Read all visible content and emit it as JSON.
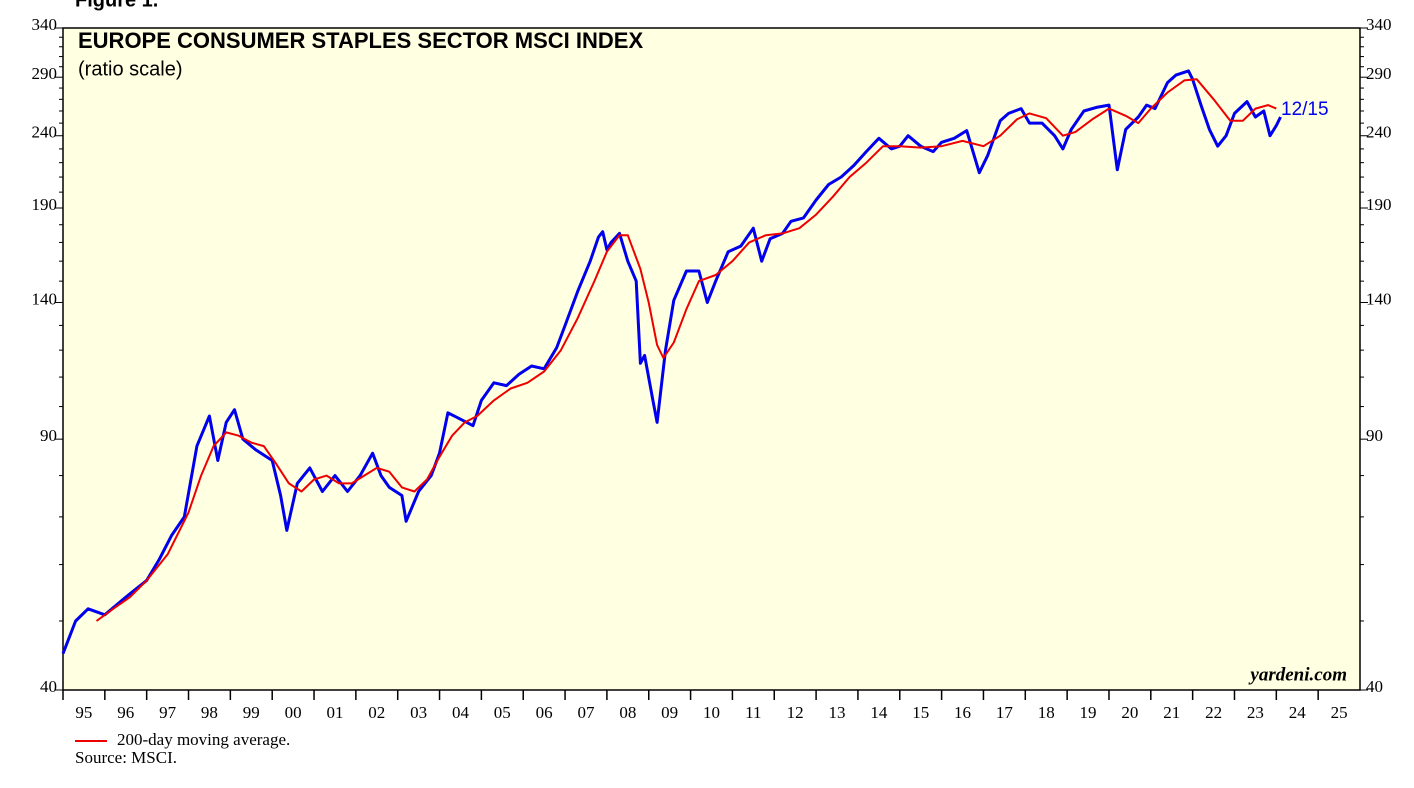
{
  "chart_data": {
    "type": "line",
    "figure_label": "Figure 1.",
    "title": "EUROPE CONSUMER STAPLES SECTOR MSCI INDEX",
    "subtitle": "(ratio scale)",
    "watermark": "yardeni.com",
    "end_label": "12/15",
    "source": "Source: MSCI.",
    "yscale": "log",
    "ylim": [
      40,
      340
    ],
    "yticks": [
      40,
      90,
      140,
      190,
      240,
      290,
      340
    ],
    "yminorticks": [
      50,
      60,
      70,
      80,
      100,
      110,
      120,
      130,
      150,
      160,
      170,
      180,
      200,
      210,
      220,
      230,
      250,
      260,
      270,
      280,
      300,
      310,
      320,
      330
    ],
    "xlim": [
      1995,
      2026
    ],
    "xticks": [
      {
        "value": 1995,
        "label": "95"
      },
      {
        "value": 1996,
        "label": "96"
      },
      {
        "value": 1997,
        "label": "97"
      },
      {
        "value": 1998,
        "label": "98"
      },
      {
        "value": 1999,
        "label": "99"
      },
      {
        "value": 2000,
        "label": "00"
      },
      {
        "value": 2001,
        "label": "01"
      },
      {
        "value": 2002,
        "label": "02"
      },
      {
        "value": 2003,
        "label": "03"
      },
      {
        "value": 2004,
        "label": "04"
      },
      {
        "value": 2005,
        "label": "05"
      },
      {
        "value": 2006,
        "label": "06"
      },
      {
        "value": 2007,
        "label": "07"
      },
      {
        "value": 2008,
        "label": "08"
      },
      {
        "value": 2009,
        "label": "09"
      },
      {
        "value": 2010,
        "label": "10"
      },
      {
        "value": 2011,
        "label": "11"
      },
      {
        "value": 2012,
        "label": "12"
      },
      {
        "value": 2013,
        "label": "13"
      },
      {
        "value": 2014,
        "label": "14"
      },
      {
        "value": 2015,
        "label": "15"
      },
      {
        "value": 2016,
        "label": "16"
      },
      {
        "value": 2017,
        "label": "17"
      },
      {
        "value": 2018,
        "label": "18"
      },
      {
        "value": 2019,
        "label": "19"
      },
      {
        "value": 2020,
        "label": "20"
      },
      {
        "value": 2021,
        "label": "21"
      },
      {
        "value": 2022,
        "label": "22"
      },
      {
        "value": 2023,
        "label": "23"
      },
      {
        "value": 2024,
        "label": "24"
      },
      {
        "value": 2025,
        "label": "25"
      }
    ],
    "series": [
      {
        "color": "#0000ee",
        "x": [
          1995.0,
          1995.3,
          1995.6,
          1996.0,
          1996.5,
          1997.0,
          1997.3,
          1997.6,
          1997.9,
          1998.2,
          1998.5,
          1998.7,
          1998.9,
          1999.1,
          1999.3,
          1999.6,
          2000.0,
          2000.2,
          2000.35,
          2000.6,
          2000.9,
          2001.2,
          2001.5,
          2001.8,
          2002.1,
          2002.4,
          2002.6,
          2002.8,
          2003.1,
          2003.2,
          2003.5,
          2003.8,
          2004.0,
          2004.2,
          2004.5,
          2004.8,
          2005.0,
          2005.3,
          2005.6,
          2005.9,
          2006.2,
          2006.5,
          2006.8,
          2007.0,
          2007.3,
          2007.6,
          2007.8,
          2007.9,
          2008.0,
          2008.1,
          2008.3,
          2008.5,
          2008.7,
          2008.8,
          2008.9,
          2009.1,
          2009.2,
          2009.4,
          2009.6,
          2009.9,
          2010.2,
          2010.4,
          2010.6,
          2010.9,
          2011.2,
          2011.5,
          2011.7,
          2011.9,
          2012.2,
          2012.4,
          2012.7,
          2013.0,
          2013.3,
          2013.6,
          2013.9,
          2014.2,
          2014.5,
          2014.8,
          2015.0,
          2015.2,
          2015.5,
          2015.8,
          2016.0,
          2016.3,
          2016.6,
          2016.9,
          2017.1,
          2017.4,
          2017.6,
          2017.9,
          2018.1,
          2018.4,
          2018.7,
          2018.9,
          2019.1,
          2019.4,
          2019.7,
          2020.0,
          2020.2,
          2020.4,
          2020.7,
          2020.9,
          2021.1,
          2021.4,
          2021.6,
          2021.9,
          2022.0,
          2022.2,
          2022.4,
          2022.6,
          2022.8,
          2023.0,
          2023.3,
          2023.5,
          2023.7,
          2023.85,
          2024.0,
          2024.1
        ],
        "values": [
          45,
          50,
          52,
          51,
          54,
          57,
          61,
          66,
          70,
          88,
          97,
          84,
          95,
          99,
          90,
          87,
          84,
          75,
          67,
          78,
          82,
          76,
          80,
          76,
          80,
          86,
          80,
          77,
          75,
          69,
          76,
          80,
          86,
          98,
          96,
          94,
          102,
          108,
          107,
          111,
          114,
          113,
          121,
          130,
          145,
          160,
          173,
          176,
          166,
          170,
          175,
          160,
          150,
          115,
          118,
          102,
          95,
          120,
          141,
          155,
          155,
          140,
          150,
          165,
          168,
          178,
          160,
          172,
          175,
          182,
          184,
          195,
          205,
          210,
          218,
          228,
          238,
          230,
          232,
          240,
          232,
          228,
          235,
          238,
          244,
          213,
          225,
          252,
          258,
          262,
          250,
          250,
          240,
          230,
          245,
          260,
          263,
          265,
          215,
          245,
          255,
          265,
          262,
          285,
          292,
          296,
          288,
          265,
          245,
          232,
          240,
          258,
          268,
          255,
          260,
          240,
          248,
          255
        ]
      },
      {
        "name": "200-day moving average.",
        "color": "#ee0000",
        "x": [
          1995.8,
          1996.2,
          1996.6,
          1997.0,
          1997.5,
          1998.0,
          1998.3,
          1998.6,
          1998.9,
          1999.2,
          1999.5,
          1999.8,
          2000.1,
          2000.4,
          2000.7,
          2001.0,
          2001.3,
          2001.6,
          2001.9,
          2002.2,
          2002.5,
          2002.8,
          2003.1,
          2003.4,
          2003.7,
          2004.0,
          2004.3,
          2004.6,
          2004.9,
          2005.3,
          2005.7,
          2006.1,
          2006.5,
          2006.9,
          2007.3,
          2007.7,
          2008.0,
          2008.3,
          2008.5,
          2008.8,
          2009.0,
          2009.2,
          2009.35,
          2009.6,
          2009.9,
          2010.2,
          2010.6,
          2011.0,
          2011.4,
          2011.8,
          2012.2,
          2012.6,
          2013.0,
          2013.4,
          2013.8,
          2014.2,
          2014.6,
          2015.0,
          2015.5,
          2016.0,
          2016.5,
          2017.0,
          2017.4,
          2017.8,
          2018.1,
          2018.5,
          2018.9,
          2019.2,
          2019.6,
          2020.0,
          2020.4,
          2020.7,
          2021.0,
          2021.4,
          2021.8,
          2022.1,
          2022.5,
          2022.9,
          2023.2,
          2023.5,
          2023.8,
          2024.0
        ],
        "values": [
          50,
          52,
          54,
          57,
          62,
          71,
          80,
          88,
          92,
          91,
          89,
          88,
          83,
          78,
          76,
          79,
          80,
          78,
          78,
          80,
          82,
          81,
          77,
          76,
          79,
          85,
          91,
          95,
          97,
          102,
          106,
          108,
          112,
          120,
          133,
          150,
          165,
          174,
          174,
          156,
          140,
          122,
          117,
          123,
          137,
          150,
          153,
          160,
          170,
          174,
          175,
          178,
          186,
          197,
          210,
          220,
          232,
          232,
          231,
          232,
          236,
          232,
          240,
          253,
          258,
          254,
          240,
          243,
          253,
          262,
          256,
          250,
          262,
          276,
          287,
          288,
          270,
          252,
          252,
          262,
          265,
          262
        ]
      }
    ]
  }
}
